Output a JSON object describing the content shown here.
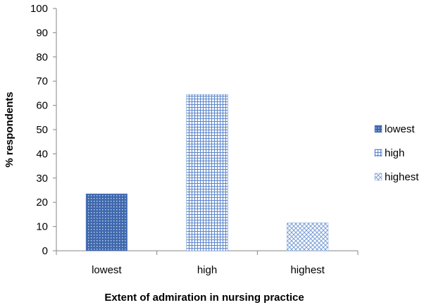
{
  "chart_data": {
    "type": "bar",
    "categories": [
      "lowest",
      "high",
      "highest"
    ],
    "values": [
      23.5,
      64.5,
      11.5
    ],
    "xlabel": "Extent of admiration in nursing practice",
    "ylabel": "% respondents",
    "ylim": [
      0,
      100
    ],
    "yticks": [
      "0",
      "10",
      "20",
      "30",
      "40",
      "50",
      "60",
      "70",
      "80",
      "90",
      "100"
    ],
    "grid": false,
    "legend": {
      "placement": "right",
      "entries": [
        "lowest",
        "high",
        "highest"
      ]
    },
    "series_styles": [
      {
        "pattern": "dots",
        "color": "#4a73b8"
      },
      {
        "pattern": "grid",
        "color": "#5b85c9"
      },
      {
        "pattern": "crosshatch",
        "color": "#7a9fd6"
      }
    ]
  }
}
